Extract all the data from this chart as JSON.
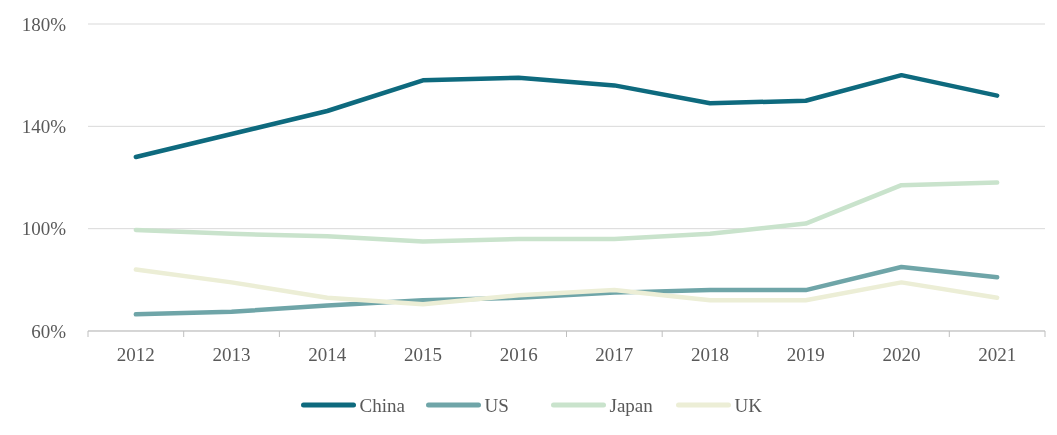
{
  "chart_data": {
    "type": "line",
    "categories": [
      "2012",
      "2013",
      "2014",
      "2015",
      "2016",
      "2017",
      "2018",
      "2019",
      "2020",
      "2021"
    ],
    "ylim": [
      60,
      180
    ],
    "yticks": [
      {
        "value": 60,
        "label": "60%"
      },
      {
        "value": 100,
        "label": "100%"
      },
      {
        "value": 140,
        "label": "140%"
      },
      {
        "value": 180,
        "label": "180%"
      }
    ],
    "grid": "y",
    "legend": "bottom",
    "marker": "none",
    "line_style": "solid",
    "series": [
      {
        "name": "China",
        "color": "#0e6a7e",
        "values": [
          128,
          137,
          146,
          158,
          159,
          156,
          149,
          150,
          160,
          152
        ]
      },
      {
        "name": "US",
        "color": "#6fa5a8",
        "values": [
          66.5,
          67.5,
          70,
          72,
          73,
          75,
          76,
          76,
          85,
          81
        ]
      },
      {
        "name": "Japan",
        "color": "#c9e3cc",
        "values": [
          99.5,
          98,
          97,
          95,
          96,
          96,
          98,
          102,
          117,
          118
        ]
      },
      {
        "name": "UK",
        "color": "#eceed6",
        "values": [
          84,
          79,
          73,
          70.5,
          74,
          76,
          72,
          72,
          79,
          73
        ]
      }
    ]
  }
}
